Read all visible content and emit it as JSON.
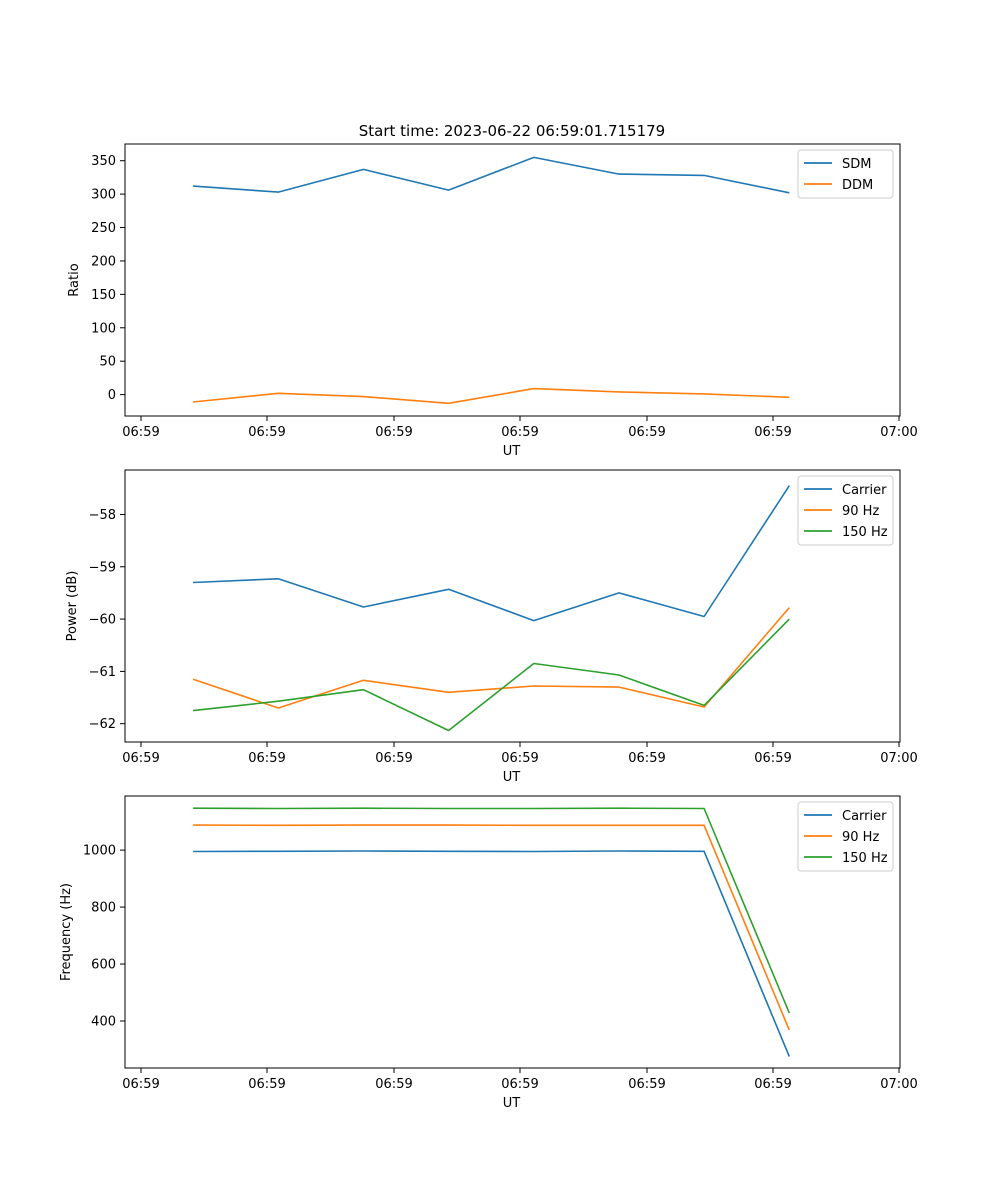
{
  "figure": {
    "title": "Start time: 2023-06-22 06:59:01.715179"
  },
  "chart_data": [
    {
      "type": "line",
      "title": "Start time: 2023-06-22 06:59:01.715179",
      "xlabel": "UT",
      "ylabel": "Ratio",
      "x_tick_labels": [
        "06:59",
        "06:59",
        "06:59",
        "06:59",
        "06:59",
        "06:59",
        "07:00"
      ],
      "y_ticks": [
        0,
        50,
        100,
        150,
        200,
        250,
        300,
        350
      ],
      "y_tick_labels": [
        "0",
        "50",
        "100",
        "150",
        "200",
        "250",
        "300",
        "350"
      ],
      "ylim": [
        -32,
        375
      ],
      "grid": false,
      "legend_position": "top-right",
      "x_points": [
        1,
        2,
        3,
        4,
        5,
        6,
        7,
        8
      ],
      "xlim": [
        0.2,
        9.3
      ],
      "series": [
        {
          "name": "SDM",
          "color": "#1f77b4",
          "values": [
            312,
            303,
            337,
            306,
            355,
            330,
            328,
            302
          ]
        },
        {
          "name": "DDM",
          "color": "#ff7f0e",
          "values": [
            -11,
            2,
            -3,
            -13,
            9,
            4,
            1,
            -4
          ]
        }
      ]
    },
    {
      "type": "line",
      "title": "",
      "xlabel": "UT",
      "ylabel": "Power (dB)",
      "x_tick_labels": [
        "06:59",
        "06:59",
        "06:59",
        "06:59",
        "06:59",
        "06:59",
        "07:00"
      ],
      "y_ticks": [
        -62,
        -61,
        -60,
        -59,
        -58
      ],
      "y_tick_labels": [
        "−62",
        "−61",
        "−60",
        "−59",
        "−58"
      ],
      "ylim": [
        -62.35,
        -57.15
      ],
      "grid": false,
      "legend_position": "top-right",
      "x_points": [
        1,
        2,
        3,
        4,
        5,
        6,
        7,
        8
      ],
      "xlim": [
        0.2,
        9.3
      ],
      "series": [
        {
          "name": "Carrier",
          "color": "#1f77b4",
          "values": [
            -59.3,
            -59.23,
            -59.77,
            -59.43,
            -60.03,
            -59.5,
            -59.95,
            -57.45
          ]
        },
        {
          "name": "90 Hz",
          "color": "#ff7f0e",
          "values": [
            -61.15,
            -61.7,
            -61.17,
            -61.4,
            -61.28,
            -61.3,
            -61.68,
            -59.78
          ]
        },
        {
          "name": "150 Hz",
          "color": "#2ca02c",
          "values": [
            -61.75,
            -61.57,
            -61.35,
            -62.13,
            -60.85,
            -61.07,
            -61.65,
            -60.0
          ]
        }
      ]
    },
    {
      "type": "line",
      "title": "",
      "xlabel": "UT",
      "ylabel": "Frequency (Hz)",
      "x_tick_labels": [
        "06:59",
        "06:59",
        "06:59",
        "06:59",
        "06:59",
        "06:59",
        "07:00"
      ],
      "y_ticks": [
        400,
        600,
        800,
        1000
      ],
      "y_tick_labels": [
        "400",
        "600",
        "800",
        "1000"
      ],
      "ylim": [
        235,
        1190
      ],
      "grid": false,
      "legend_position": "top-right",
      "x_points": [
        1,
        2,
        3,
        4,
        5,
        6,
        7,
        8
      ],
      "xlim": [
        0.2,
        9.3
      ],
      "series": [
        {
          "name": "Carrier",
          "color": "#1f77b4",
          "values": [
            995,
            996,
            997,
            996,
            995,
            997,
            996,
            275
          ]
        },
        {
          "name": "90 Hz",
          "color": "#ff7f0e",
          "values": [
            1088,
            1087,
            1088,
            1088,
            1087,
            1087,
            1087,
            368
          ]
        },
        {
          "name": "150 Hz",
          "color": "#2ca02c",
          "values": [
            1147,
            1146,
            1147,
            1146,
            1146,
            1147,
            1146,
            428
          ]
        }
      ]
    }
  ]
}
